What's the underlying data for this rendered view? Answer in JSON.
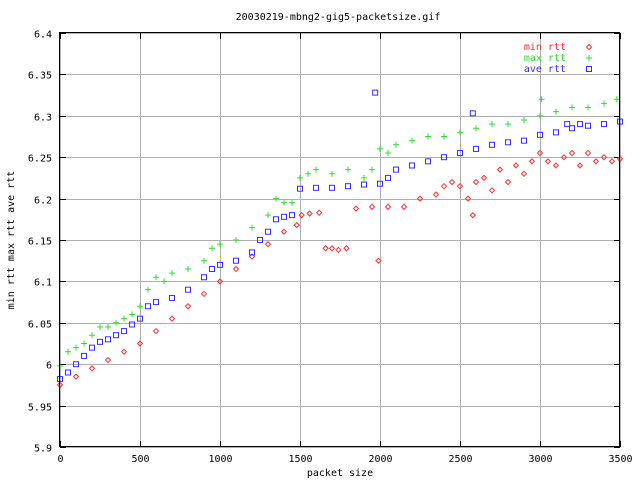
{
  "chart_data": {
    "type": "scatter",
    "title": "20030219-mbng2-gig5-packetsize.gif",
    "xlabel": "packet size",
    "ylabel": "min rtt max rtt ave rtt",
    "xlim": [
      0,
      3500
    ],
    "ylim": [
      5.9,
      6.4
    ],
    "xticks": [
      "0",
      "500",
      "1000",
      "1500",
      "2000",
      "2500",
      "3000",
      "3500"
    ],
    "yticks": [
      "5.9",
      "5.95",
      "6",
      "6.05",
      "6.1",
      "6.15",
      "6.2",
      "6.25",
      "6.3",
      "6.35",
      "6.4"
    ],
    "grid": true,
    "legend_position": "top-right",
    "series": [
      {
        "name": "min rtt",
        "color": "#ff3030",
        "marker": "diamond",
        "points": [
          [
            0,
            5.975
          ],
          [
            100,
            5.985
          ],
          [
            200,
            5.995
          ],
          [
            300,
            6.005
          ],
          [
            400,
            6.015
          ],
          [
            500,
            6.025
          ],
          [
            600,
            6.04
          ],
          [
            700,
            6.055
          ],
          [
            800,
            6.07
          ],
          [
            900,
            6.085
          ],
          [
            1000,
            6.1
          ],
          [
            1100,
            6.115
          ],
          [
            1200,
            6.13
          ],
          [
            1300,
            6.145
          ],
          [
            1400,
            6.16
          ],
          [
            1480,
            6.168
          ],
          [
            1510,
            6.18
          ],
          [
            1560,
            6.182
          ],
          [
            1620,
            6.183
          ],
          [
            1660,
            6.14
          ],
          [
            1700,
            6.14
          ],
          [
            1740,
            6.138
          ],
          [
            1790,
            6.14
          ],
          [
            1850,
            6.188
          ],
          [
            1950,
            6.19
          ],
          [
            1990,
            6.125
          ],
          [
            2050,
            6.19
          ],
          [
            2150,
            6.19
          ],
          [
            2250,
            6.2
          ],
          [
            2350,
            6.205
          ],
          [
            2400,
            6.215
          ],
          [
            2450,
            6.22
          ],
          [
            2500,
            6.215
          ],
          [
            2550,
            6.2
          ],
          [
            2580,
            6.18
          ],
          [
            2600,
            6.22
          ],
          [
            2650,
            6.225
          ],
          [
            2700,
            6.21
          ],
          [
            2750,
            6.235
          ],
          [
            2800,
            6.22
          ],
          [
            2850,
            6.24
          ],
          [
            2900,
            6.23
          ],
          [
            2950,
            6.245
          ],
          [
            3000,
            6.255
          ],
          [
            3050,
            6.245
          ],
          [
            3100,
            6.24
          ],
          [
            3150,
            6.25
          ],
          [
            3200,
            6.255
          ],
          [
            3250,
            6.24
          ],
          [
            3300,
            6.255
          ],
          [
            3350,
            6.245
          ],
          [
            3400,
            6.25
          ],
          [
            3450,
            6.245
          ],
          [
            3500,
            6.248
          ]
        ]
      },
      {
        "name": "max rtt",
        "color": "#30e030",
        "marker": "plus",
        "points": [
          [
            0,
            5.998
          ],
          [
            50,
            6.015
          ],
          [
            100,
            6.02
          ],
          [
            150,
            6.025
          ],
          [
            200,
            6.035
          ],
          [
            250,
            6.045
          ],
          [
            300,
            6.045
          ],
          [
            350,
            6.05
          ],
          [
            400,
            6.055
          ],
          [
            450,
            6.06
          ],
          [
            500,
            6.07
          ],
          [
            550,
            6.09
          ],
          [
            600,
            6.105
          ],
          [
            650,
            6.1
          ],
          [
            700,
            6.11
          ],
          [
            800,
            6.115
          ],
          [
            900,
            6.125
          ],
          [
            950,
            6.14
          ],
          [
            1000,
            6.145
          ],
          [
            1100,
            6.15
          ],
          [
            1200,
            6.165
          ],
          [
            1300,
            6.18
          ],
          [
            1350,
            6.2
          ],
          [
            1400,
            6.195
          ],
          [
            1450,
            6.195
          ],
          [
            1500,
            6.225
          ],
          [
            1550,
            6.23
          ],
          [
            1600,
            6.235
          ],
          [
            1700,
            6.23
          ],
          [
            1800,
            6.235
          ],
          [
            1900,
            6.225
          ],
          [
            1950,
            6.235
          ],
          [
            2000,
            6.26
          ],
          [
            2050,
            6.255
          ],
          [
            2100,
            6.265
          ],
          [
            2200,
            6.27
          ],
          [
            2300,
            6.275
          ],
          [
            2400,
            6.275
          ],
          [
            2500,
            6.28
          ],
          [
            2600,
            6.285
          ],
          [
            2700,
            6.29
          ],
          [
            2800,
            6.29
          ],
          [
            2900,
            6.295
          ],
          [
            3000,
            6.3
          ],
          [
            3010,
            6.32
          ],
          [
            3100,
            6.305
          ],
          [
            3200,
            6.31
          ],
          [
            3300,
            6.31
          ],
          [
            3400,
            6.315
          ],
          [
            3480,
            6.32
          ]
        ]
      },
      {
        "name": "ave rtt",
        "color": "#3030ff",
        "marker": "square",
        "points": [
          [
            0,
            5.982
          ],
          [
            50,
            5.99
          ],
          [
            100,
            6.0
          ],
          [
            150,
            6.01
          ],
          [
            200,
            6.02
          ],
          [
            250,
            6.027
          ],
          [
            300,
            6.03
          ],
          [
            350,
            6.035
          ],
          [
            400,
            6.04
          ],
          [
            450,
            6.048
          ],
          [
            500,
            6.055
          ],
          [
            550,
            6.07
          ],
          [
            600,
            6.075
          ],
          [
            700,
            6.08
          ],
          [
            800,
            6.09
          ],
          [
            900,
            6.105
          ],
          [
            950,
            6.115
          ],
          [
            1000,
            6.12
          ],
          [
            1100,
            6.125
          ],
          [
            1200,
            6.135
          ],
          [
            1250,
            6.15
          ],
          [
            1300,
            6.16
          ],
          [
            1350,
            6.175
          ],
          [
            1400,
            6.178
          ],
          [
            1450,
            6.18
          ],
          [
            1500,
            6.212
          ],
          [
            1600,
            6.213
          ],
          [
            1700,
            6.213
          ],
          [
            1800,
            6.215
          ],
          [
            1900,
            6.217
          ],
          [
            1970,
            6.328
          ],
          [
            2000,
            6.218
          ],
          [
            2050,
            6.225
          ],
          [
            2100,
            6.235
          ],
          [
            2200,
            6.24
          ],
          [
            2300,
            6.245
          ],
          [
            2400,
            6.25
          ],
          [
            2500,
            6.255
          ],
          [
            2580,
            6.303
          ],
          [
            2600,
            6.26
          ],
          [
            2700,
            6.265
          ],
          [
            2800,
            6.268
          ],
          [
            2900,
            6.27
          ],
          [
            3000,
            6.277
          ],
          [
            3100,
            6.28
          ],
          [
            3170,
            6.29
          ],
          [
            3200,
            6.285
          ],
          [
            3250,
            6.29
          ],
          [
            3300,
            6.288
          ],
          [
            3400,
            6.29
          ],
          [
            3500,
            6.293
          ]
        ]
      }
    ]
  }
}
